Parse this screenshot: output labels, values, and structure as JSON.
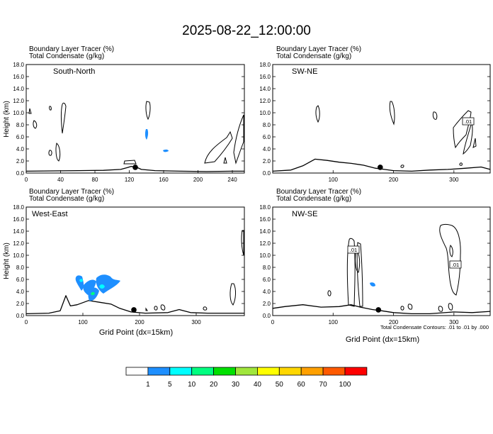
{
  "title": "2025-08-22_12:00:00",
  "chart_data": [
    {
      "type": "area",
      "panel": "South-North",
      "header": [
        "Boundary Layer Tracer   (%)",
        "Total Condensate   (g/kg)"
      ],
      "ylabel": "Height (km)",
      "xlim": [
        0,
        254
      ],
      "ylim": [
        0,
        18
      ],
      "xticks": [
        "0",
        "40",
        "80",
        "120",
        "160",
        "200",
        "240"
      ],
      "yticks": [
        "0.0",
        "2.0",
        "4.0",
        "6.0",
        "8.0",
        "10.0",
        "12.0",
        "14.0",
        "16.0",
        "18.0"
      ],
      "terrain": [
        [
          0,
          0.3
        ],
        [
          30,
          0.35
        ],
        [
          60,
          0.4
        ],
        [
          90,
          0.45
        ],
        [
          110,
          0.6
        ],
        [
          118,
          0.9
        ],
        [
          122,
          1.1
        ],
        [
          128,
          1.0
        ],
        [
          134,
          0.6
        ],
        [
          150,
          0.4
        ],
        [
          180,
          0.3
        ],
        [
          210,
          0.25
        ],
        [
          240,
          0.3
        ],
        [
          254,
          0.3
        ]
      ],
      "marker_x": 127
    },
    {
      "type": "area",
      "panel": "SW-NE",
      "header": [
        "Boundary Layer Tracer   (%)",
        "Total Condensate   (g/kg)"
      ],
      "ylabel": "",
      "xlim": [
        0,
        360
      ],
      "ylim": [
        0,
        18
      ],
      "xticks": [
        "100",
        "200",
        "300"
      ],
      "yticks": [
        "0.0",
        "2.0",
        "4.0",
        "6.0",
        "8.0",
        "10.0",
        "12.0",
        "14.0",
        "16.0",
        "18.0"
      ],
      "terrain": [
        [
          0,
          0.3
        ],
        [
          30,
          0.5
        ],
        [
          50,
          1.2
        ],
        [
          70,
          2.3
        ],
        [
          90,
          2.1
        ],
        [
          110,
          1.8
        ],
        [
          130,
          1.6
        ],
        [
          150,
          1.3
        ],
        [
          170,
          0.8
        ],
        [
          185,
          0.6
        ],
        [
          200,
          0.4
        ],
        [
          230,
          0.3
        ],
        [
          260,
          0.5
        ],
        [
          290,
          0.6
        ],
        [
          320,
          0.8
        ],
        [
          345,
          1.0
        ],
        [
          360,
          0.6
        ]
      ],
      "marker_x": 178,
      "contour_labels": [
        ".01"
      ]
    },
    {
      "type": "area",
      "panel": "West-East",
      "header": [
        "Boundary Layer Tracer   (%)",
        "Total Condensate   (g/kg)"
      ],
      "ylabel": "Height (km)",
      "xlabel": "Grid Point (dx=15km)",
      "xlim": [
        0,
        385
      ],
      "ylim": [
        0,
        18
      ],
      "xticks": [
        "0",
        "100",
        "200",
        "300"
      ],
      "yticks": [
        "0.0",
        "2.0",
        "4.0",
        "6.0",
        "8.0",
        "10.0",
        "12.0",
        "14.0",
        "16.0",
        "18.0"
      ],
      "terrain": [
        [
          0,
          0.3
        ],
        [
          40,
          0.4
        ],
        [
          60,
          0.8
        ],
        [
          70,
          3.3
        ],
        [
          78,
          1.6
        ],
        [
          90,
          1.8
        ],
        [
          110,
          2.5
        ],
        [
          130,
          2.2
        ],
        [
          150,
          1.9
        ],
        [
          165,
          1.2
        ],
        [
          185,
          0.6
        ],
        [
          210,
          0.4
        ],
        [
          250,
          0.5
        ],
        [
          270,
          1.0
        ],
        [
          290,
          0.5
        ],
        [
          320,
          0.4
        ],
        [
          360,
          0.4
        ],
        [
          385,
          0.4
        ]
      ],
      "marker_x": 190,
      "tracer_levels": [
        1,
        5,
        10
      ]
    },
    {
      "type": "area",
      "panel": "NW-SE",
      "header": [
        "Boundary Layer Tracer   (%)",
        "Total Condensate   (g/kg)"
      ],
      "ylabel": "",
      "xlabel": "Grid Point (dx=15km)",
      "xlim": [
        0,
        360
      ],
      "ylim": [
        0,
        18
      ],
      "xticks": [
        "0",
        "100",
        "200",
        "300"
      ],
      "yticks": [
        "0.0",
        "2.0",
        "4.0",
        "6.0",
        "8.0",
        "10.0",
        "12.0",
        "14.0",
        "16.0",
        "18.0"
      ],
      "terrain": [
        [
          0,
          1.2
        ],
        [
          20,
          1.5
        ],
        [
          50,
          1.8
        ],
        [
          80,
          1.4
        ],
        [
          110,
          1.5
        ],
        [
          130,
          1.8
        ],
        [
          145,
          1.4
        ],
        [
          165,
          1.0
        ],
        [
          180,
          0.8
        ],
        [
          200,
          0.5
        ],
        [
          230,
          0.3
        ],
        [
          260,
          0.3
        ],
        [
          300,
          0.6
        ],
        [
          330,
          0.5
        ],
        [
          360,
          0.7
        ]
      ],
      "marker_x": 175,
      "contour_labels": [
        ".01",
        ".01"
      ]
    }
  ],
  "footnote": "Total Condensate Contours: .01 to .01 by .000",
  "colorbar": {
    "colors": [
      "#ffffff",
      "#1e8fff",
      "#00ffff",
      "#00ff80",
      "#00e000",
      "#a0e63c",
      "#ffff00",
      "#ffd700",
      "#ffa000",
      "#ff5a00",
      "#ff0000"
    ],
    "labels": [
      "1",
      "5",
      "10",
      "20",
      "30",
      "40",
      "50",
      "60",
      "70",
      "100"
    ]
  }
}
